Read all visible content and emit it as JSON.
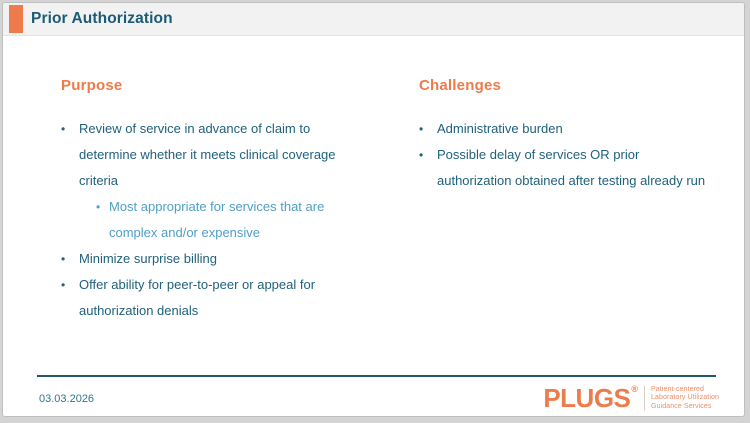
{
  "header": {
    "title": "Prior Authorization"
  },
  "bullet_glyph": "•",
  "columns": [
    {
      "heading": "Purpose",
      "bullets": [
        {
          "text": "Review of service in advance of claim to determine whether it meets clinical coverage criteria",
          "sub": [
            "Most appropriate for services that are complex and/or expensive"
          ]
        },
        {
          "text": "Minimize surprise billing",
          "sub": []
        },
        {
          "text": "Offer ability for peer-to-peer or appeal for authorization denials",
          "sub": []
        }
      ]
    },
    {
      "heading": "Challenges",
      "bullets": [
        {
          "text": "Administrative burden",
          "sub": []
        },
        {
          "text": "Possible delay of services OR prior authorization obtained after testing already run",
          "sub": []
        }
      ]
    }
  ],
  "footer": {
    "date": "03.03.2026",
    "logo": {
      "name": "PLUGS",
      "registered_mark": "®",
      "tagline_lines": [
        "Patient-centered",
        "Laboratory Utilization",
        "Guidance Services"
      ]
    }
  },
  "colors": {
    "accent_orange": "#ED7B4B",
    "title_teal": "#1C5B74",
    "body_teal": "#20617D",
    "sub_bullet_blue": "#4F9FC6",
    "footer_line_teal": "#25586D",
    "header_band_gray": "#F2F2F3"
  }
}
